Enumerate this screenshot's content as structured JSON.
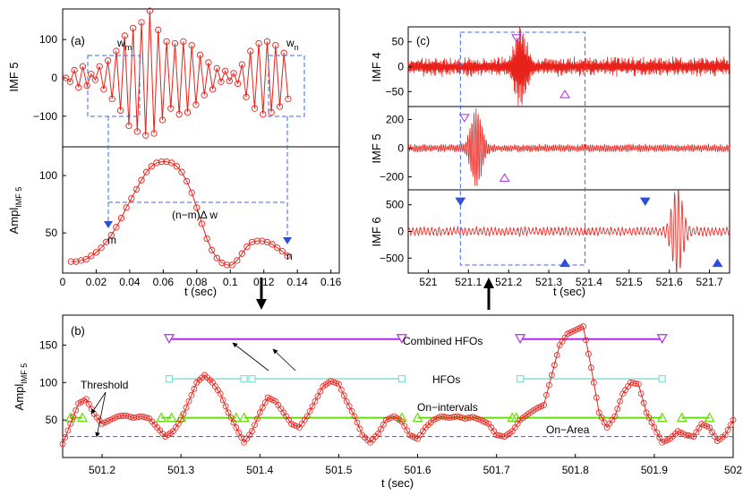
{
  "chart_data": [
    {
      "id": "a",
      "type": "line",
      "panel_label": "(a)",
      "xlabel": "t (sec)",
      "xlim": [
        0,
        0.165
      ],
      "xticks": [
        "0",
        "0.02",
        "0.04",
        "0.06",
        "0.08",
        "0.1",
        "0.12",
        "0.14",
        "0.16"
      ],
      "xtick_values": [
        0,
        0.02,
        0.04,
        0.06,
        0.08,
        0.1,
        0.12,
        0.14,
        0.16
      ],
      "subplots": [
        {
          "ylabel": "IMF 5",
          "ylim": [
            -180,
            180
          ],
          "yticks": [
            "100",
            "0",
            "−100"
          ],
          "ytick_values": [
            100,
            0,
            -100
          ],
          "series": [
            {
              "name": "IMF 5",
              "color": "#e8221b",
              "marker": "circle",
              "x_start": 0.002,
              "x_step": 0.0025,
              "values": [
                0,
                -10,
                20,
                -25,
                30,
                -20,
                10,
                -5,
                30,
                -30,
                45,
                -55,
                70,
                -85,
                110,
                -125,
                130,
                -140,
                145,
                -150,
                175,
                -145,
                125,
                -110,
                95,
                -80,
                90,
                -95,
                95,
                -90,
                85,
                -70,
                60,
                -45,
                40,
                -30,
                25,
                -10,
                18,
                -8,
                12,
                -15,
                35,
                -50,
                70,
                -80,
                90,
                -95,
                95,
                -90,
                85,
                -75,
                65,
                -55
              ]
            }
          ]
        },
        {
          "ylabel": "Ampl",
          "ylabel_subscript": "IMF 5",
          "ylim": [
            15,
            125
          ],
          "yticks": [
            "100",
            "50"
          ],
          "ytick_values": [
            100,
            50
          ],
          "series": [
            {
              "name": "Amplitude",
              "color": "#e8221b",
              "marker": "circle",
              "x_start": 0.005,
              "x_step": 0.003,
              "values": [
                25,
                25,
                26,
                27,
                30,
                33,
                37,
                42,
                48,
                55,
                63,
                72,
                80,
                88,
                96,
                103,
                108,
                111,
                112,
                112,
                111,
                108,
                103,
                95,
                85,
                72,
                58,
                45,
                35,
                28,
                24,
                22,
                22,
                26,
                32,
                38,
                42,
                43,
                43,
                42,
                40,
                37,
                34,
                30
              ]
            }
          ]
        }
      ],
      "annotations": {
        "wm": "w",
        "wm_sub": "m",
        "wn": "w",
        "wn_sub": "n",
        "span": "(n−m)Δ w",
        "m": "m",
        "n": "n"
      }
    },
    {
      "id": "b",
      "type": "line",
      "panel_label": "(b)",
      "xlabel": "t (sec)",
      "ylabel": "Ampl",
      "ylabel_subscript": "IMF 5",
      "xlim": [
        501.15,
        502.0
      ],
      "ylim": [
        0,
        190
      ],
      "xticks": [
        "501.2",
        "501.3",
        "501.4",
        "501.5",
        "501.6",
        "501.7",
        "501.8",
        "501.9",
        "502"
      ],
      "xtick_values": [
        501.2,
        501.3,
        501.4,
        501.5,
        501.6,
        501.7,
        501.8,
        501.9,
        502.0
      ],
      "yticks": [
        "150",
        "100",
        "50"
      ],
      "ytick_values": [
        150,
        100,
        50
      ],
      "threshold": 28,
      "on_intervals_level": 53,
      "hfo_level": 105,
      "combined_level": 158,
      "on_intervals": [
        [
          501.16,
          501.175
        ],
        [
          501.275,
          501.288
        ],
        [
          501.3,
          501.37
        ],
        [
          501.38,
          501.58
        ],
        [
          501.6,
          501.72
        ],
        [
          501.725,
          501.91
        ],
        [
          501.935,
          501.97
        ]
      ],
      "hfos": [
        [
          501.285,
          501.38
        ],
        [
          501.39,
          501.58
        ],
        [
          501.73,
          501.91
        ]
      ],
      "combined_hfos": [
        [
          501.285,
          501.58
        ],
        [
          501.73,
          501.91
        ]
      ],
      "amplitude_series": {
        "x": [
          501.15,
          501.16,
          501.17,
          501.18,
          501.19,
          501.2,
          501.21,
          501.22,
          501.23,
          501.24,
          501.25,
          501.26,
          501.27,
          501.28,
          501.29,
          501.3,
          501.31,
          501.32,
          501.33,
          501.34,
          501.35,
          501.36,
          501.37,
          501.38,
          501.39,
          501.4,
          501.41,
          501.42,
          501.43,
          501.44,
          501.45,
          501.46,
          501.47,
          501.48,
          501.49,
          501.5,
          501.51,
          501.52,
          501.53,
          501.54,
          501.55,
          501.56,
          501.57,
          501.58,
          501.59,
          501.6,
          501.61,
          501.62,
          501.63,
          501.64,
          501.65,
          501.66,
          501.67,
          501.68,
          501.69,
          501.7,
          501.71,
          501.72,
          501.73,
          501.74,
          501.75,
          501.76,
          501.77,
          501.78,
          501.79,
          501.8,
          501.81,
          501.82,
          501.83,
          501.84,
          501.85,
          501.86,
          501.87,
          501.88,
          501.89,
          501.9,
          501.91,
          501.92,
          501.93,
          501.94,
          501.95,
          501.96,
          501.97,
          501.98,
          501.99,
          502.0
        ],
        "values": [
          18,
          45,
          72,
          78,
          58,
          45,
          50,
          55,
          56,
          53,
          55,
          52,
          40,
          28,
          35,
          50,
          75,
          100,
          110,
          100,
          85,
          60,
          40,
          20,
          35,
          60,
          80,
          75,
          60,
          45,
          40,
          55,
          75,
          95,
          102,
          98,
          75,
          55,
          30,
          20,
          32,
          50,
          55,
          48,
          30,
          25,
          40,
          50,
          55,
          53,
          55,
          52,
          54,
          50,
          45,
          30,
          28,
          35,
          50,
          58,
          65,
          70,
          110,
          150,
          165,
          170,
          175,
          120,
          60,
          40,
          55,
          85,
          100,
          98,
          60,
          40,
          20,
          25,
          35,
          30,
          28,
          45,
          40,
          22,
          30,
          50
        ]
      },
      "labels": {
        "threshold": "Threshold",
        "on_intervals": "On−intervals",
        "hfos": "HFOs",
        "combined_hfos": "Combined HFOs",
        "on_area": "On−Area"
      },
      "colors": {
        "amplitude": "#e8221b",
        "on_intervals": "#66dd0c",
        "hfos": "#7fe0d6",
        "combined": "#b12ce6",
        "threshold": "#3a57d8"
      }
    },
    {
      "id": "c",
      "type": "line",
      "panel_label": "(c)",
      "xlabel": "t (sec)",
      "xlim": [
        520.95,
        521.75
      ],
      "xticks": [
        "521",
        "521.1",
        "521.2",
        "521.3",
        "521.4",
        "521.5",
        "521.6",
        "521.7"
      ],
      "xtick_values": [
        521,
        521.1,
        521.2,
        521.3,
        521.4,
        521.5,
        521.6,
        521.7
      ],
      "subplots": [
        {
          "ylabel": "IMF 4",
          "ylim": [
            -80,
            80
          ],
          "yticks": [
            "50",
            "0",
            "−50"
          ],
          "ytick_values": [
            50,
            0,
            -50
          ],
          "burst_center": 521.23,
          "burst_amp": 70,
          "base_amp": 14,
          "markers": [
            {
              "x": 521.22,
              "y": 57,
              "kind": "down"
            },
            {
              "x": 521.34,
              "y": -55,
              "kind": "up"
            }
          ]
        },
        {
          "ylabel": "IMF 5",
          "ylim": [
            -290,
            290
          ],
          "yticks": [
            "200",
            "0",
            "−200"
          ],
          "ytick_values": [
            200,
            0,
            -200
          ],
          "burst_center": 521.12,
          "burst_amp": 260,
          "base_amp": 20,
          "markers": [
            {
              "x": 521.09,
              "y": 210,
              "kind": "down"
            },
            {
              "x": 521.19,
              "y": -205,
              "kind": "up"
            }
          ]
        },
        {
          "ylabel": "IMF 6",
          "ylim": [
            -780,
            780
          ],
          "yticks": [
            "500",
            "0",
            "−500"
          ],
          "ytick_values": [
            500,
            0,
            -500
          ],
          "burst_center": 521.62,
          "burst_amp": 760,
          "base_amp": 60,
          "markers": [
            {
              "x": 521.08,
              "y": 560,
              "kind": "down"
            },
            {
              "x": 521.34,
              "y": -590,
              "kind": "up"
            },
            {
              "x": 521.54,
              "y": 560,
              "kind": "down"
            },
            {
              "x": 521.72,
              "y": -590,
              "kind": "up"
            }
          ]
        }
      ],
      "box_range": [
        521.08,
        521.39
      ]
    }
  ]
}
